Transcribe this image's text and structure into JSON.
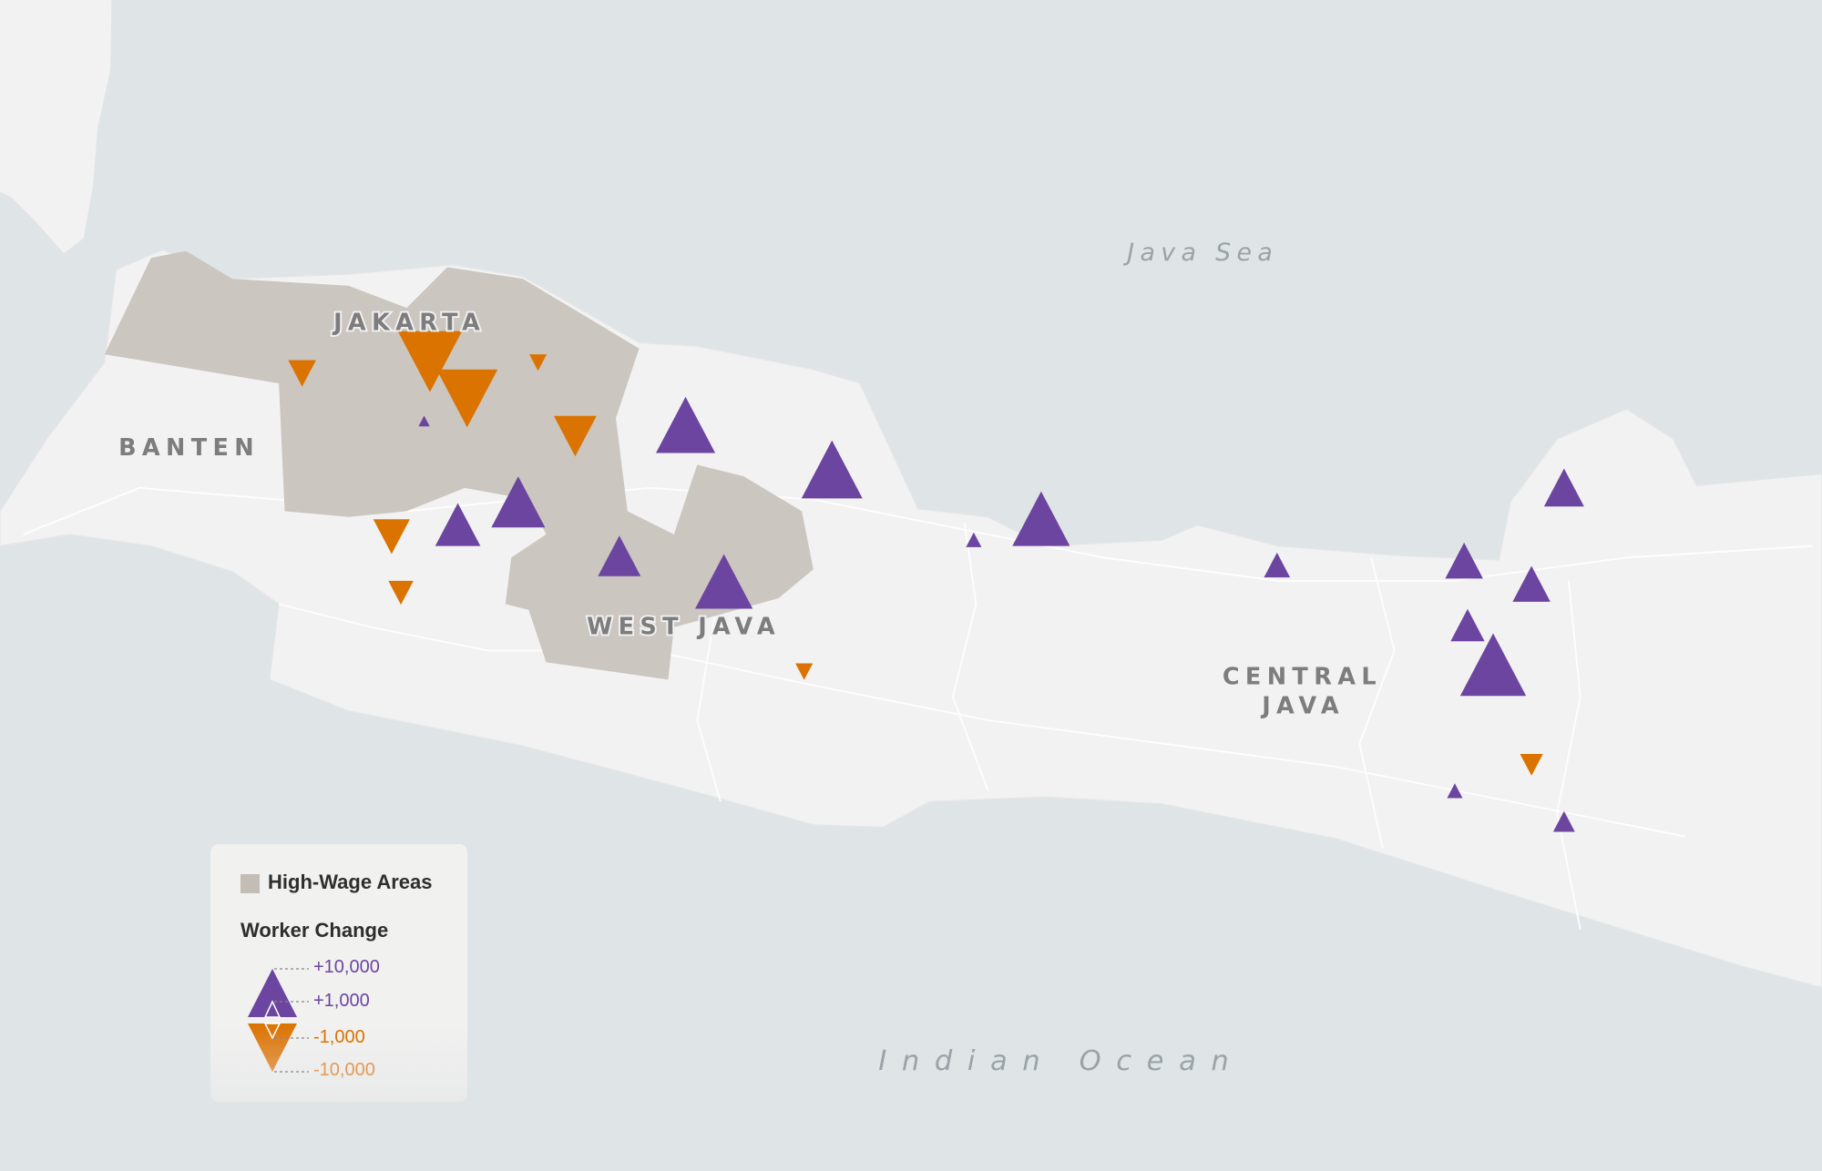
{
  "map": {
    "labels": {
      "jakarta": "JAKARTA",
      "banten": "BANTEN",
      "west_java": "WEST JAVA",
      "central_java_1": "CENTRAL",
      "central_java_2": "JAVA",
      "java_sea": "Java Sea",
      "indian_ocean": "Indian Ocean"
    },
    "colors": {
      "water": "#dfe4e7",
      "land": "#f2f2f2",
      "high_wage": "#cbc6c0",
      "increase": "#6c45a0",
      "decrease": "#db7300"
    },
    "markers": [
      {
        "direction": "decrease",
        "value": -1200
      },
      {
        "direction": "decrease",
        "value": -9000
      },
      {
        "direction": "decrease",
        "value": -8000
      },
      {
        "direction": "decrease",
        "value": -300
      },
      {
        "direction": "decrease",
        "value": -3500
      },
      {
        "direction": "decrease",
        "value": -2400
      },
      {
        "direction": "decrease",
        "value": -900
      },
      {
        "direction": "decrease",
        "value": -300
      },
      {
        "direction": "decrease",
        "value": -700
      },
      {
        "direction": "increase",
        "value": 7500
      },
      {
        "direction": "increase",
        "value": 8000
      },
      {
        "direction": "increase",
        "value": 6000
      },
      {
        "direction": "increase",
        "value": 4000
      },
      {
        "direction": "increase",
        "value": 3500
      },
      {
        "direction": "increase",
        "value": 7000
      },
      {
        "direction": "increase",
        "value": 7000
      },
      {
        "direction": "increase",
        "value": 200
      },
      {
        "direction": "increase",
        "value": 1000
      },
      {
        "direction": "increase",
        "value": 2600
      },
      {
        "direction": "increase",
        "value": 3000
      },
      {
        "direction": "increase",
        "value": 2600
      },
      {
        "direction": "increase",
        "value": 2000
      },
      {
        "direction": "increase",
        "value": 9500
      },
      {
        "direction": "increase",
        "value": 200
      },
      {
        "direction": "increase",
        "value": 600
      },
      {
        "direction": "increase",
        "value": 50
      }
    ]
  },
  "legend": {
    "high_wage_label": "High-Wage Areas",
    "worker_change_title": "Worker Change",
    "scale": [
      "+10,000",
      "+1,000",
      "-1,000",
      "-10,000"
    ]
  }
}
